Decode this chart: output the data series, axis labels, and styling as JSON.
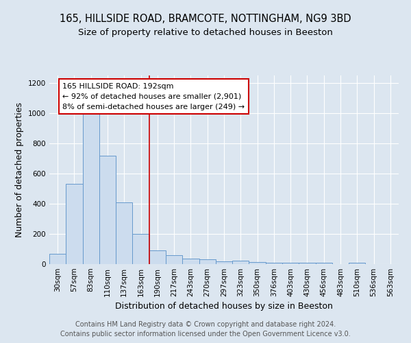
{
  "title1": "165, HILLSIDE ROAD, BRAMCOTE, NOTTINGHAM, NG9 3BD",
  "title2": "Size of property relative to detached houses in Beeston",
  "xlabel": "Distribution of detached houses by size in Beeston",
  "ylabel": "Number of detached properties",
  "categories": [
    "30sqm",
    "57sqm",
    "83sqm",
    "110sqm",
    "137sqm",
    "163sqm",
    "190sqm",
    "217sqm",
    "243sqm",
    "270sqm",
    "297sqm",
    "323sqm",
    "350sqm",
    "376sqm",
    "403sqm",
    "430sqm",
    "456sqm",
    "483sqm",
    "510sqm",
    "536sqm",
    "563sqm"
  ],
  "values": [
    68,
    530,
    1005,
    720,
    408,
    200,
    90,
    60,
    38,
    30,
    18,
    22,
    15,
    8,
    8,
    8,
    8,
    2,
    8,
    0,
    2
  ],
  "bar_color": "#ccdcee",
  "bar_edge_color": "#6699cc",
  "red_line_index": 6,
  "red_line_color": "#cc0000",
  "annotation_text": "165 HILLSIDE ROAD: 192sqm\n← 92% of detached houses are smaller (2,901)\n8% of semi-detached houses are larger (249) →",
  "annotation_box_color": "#ffffff",
  "annotation_box_edge": "#cc0000",
  "ylim": [
    0,
    1250
  ],
  "yticks": [
    0,
    200,
    400,
    600,
    800,
    1000,
    1200
  ],
  "footer1": "Contains HM Land Registry data © Crown copyright and database right 2024.",
  "footer2": "Contains public sector information licensed under the Open Government Licence v3.0.",
  "background_color": "#dce6f0",
  "plot_background": "#dce6f0",
  "grid_color": "#ffffff",
  "title_fontsize": 10.5,
  "subtitle_fontsize": 9.5,
  "label_fontsize": 9,
  "tick_fontsize": 7.5,
  "footer_fontsize": 7,
  "ann_fontsize": 8
}
